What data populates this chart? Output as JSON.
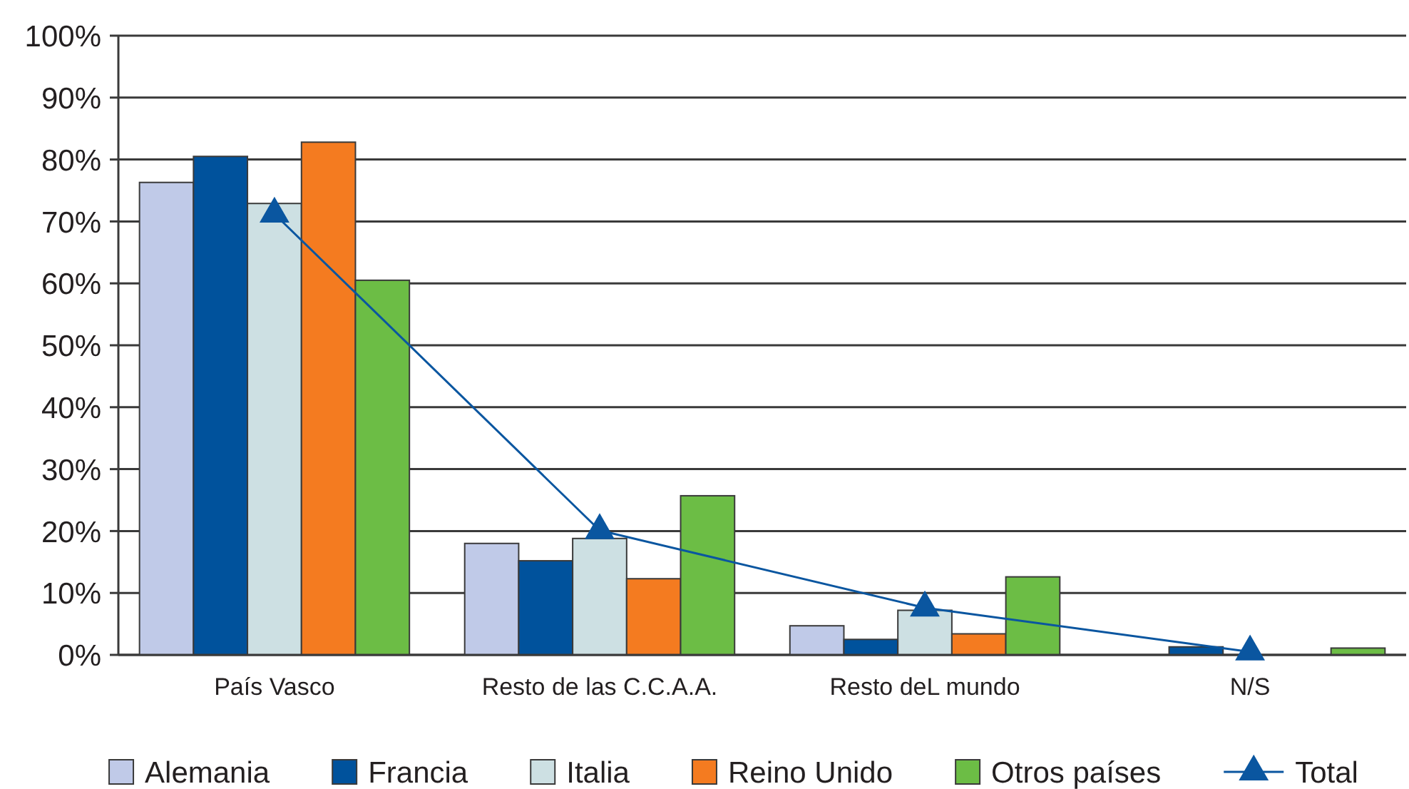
{
  "chart_data": {
    "type": "bar",
    "categories": [
      "País Vasco",
      "Resto de las C.C.A.A.",
      "Resto deL mundo",
      "N/S"
    ],
    "series": [
      {
        "name": "Alemania",
        "color": "#c0cae8",
        "values": [
          76.3,
          18,
          4.7,
          0
        ]
      },
      {
        "name": "Francia",
        "color": "#00529c",
        "values": [
          80.5,
          15.2,
          2.5,
          1.3
        ]
      },
      {
        "name": "Italia",
        "color": "#cde0e3",
        "values": [
          72.9,
          18.8,
          7.2,
          0
        ]
      },
      {
        "name": "Reino Unido",
        "color": "#f47b20",
        "values": [
          82.8,
          12.3,
          3.4,
          0
        ]
      },
      {
        "name": "Otros países",
        "color": "#6cbd45",
        "values": [
          60.5,
          25.7,
          12.6,
          1.1
        ]
      },
      {
        "name": "Total",
        "type": "line",
        "color": "#0a56a0",
        "marker": "triangle",
        "values": [
          71.2,
          20.1,
          7.6,
          0.5
        ]
      }
    ],
    "ylim": [
      0,
      100
    ],
    "yticks": [
      {
        "value": 0,
        "label": "0%"
      },
      {
        "value": 10,
        "label": "10%"
      },
      {
        "value": 20,
        "label": "20%"
      },
      {
        "value": 30,
        "label": "30%"
      },
      {
        "value": 40,
        "label": "40%"
      },
      {
        "value": 50,
        "label": "50%"
      },
      {
        "value": 60,
        "label": "60%"
      },
      {
        "value": 70,
        "label": "70%"
      },
      {
        "value": 80,
        "label": "80%"
      },
      {
        "value": 90,
        "label": "90%"
      },
      {
        "value": 100,
        "label": "100%"
      }
    ],
    "grid": "y",
    "legend": "bottom"
  }
}
